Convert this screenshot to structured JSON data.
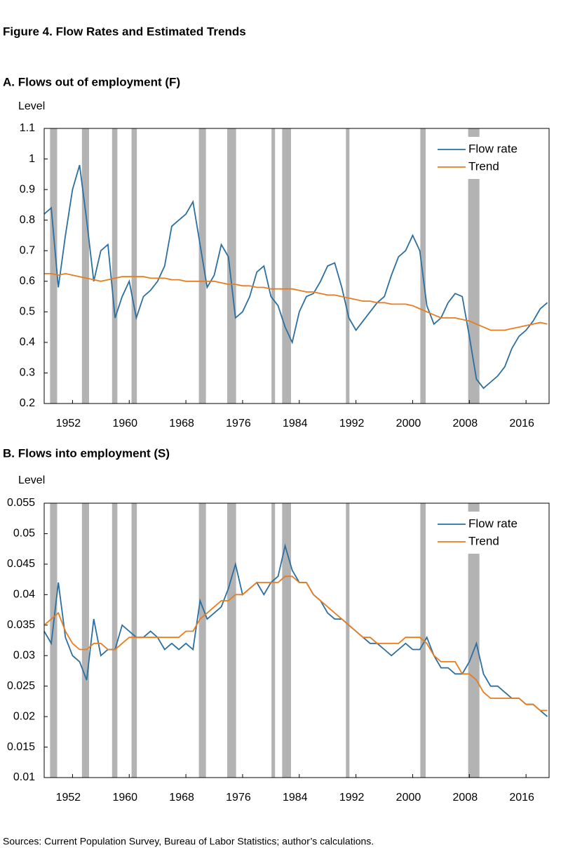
{
  "title": "Figure 4. Flow Rates and Estimated Trends",
  "source": "Sources: Current Population Survey, Bureau of Labor Statistics; author’s calculations.",
  "chart_data": [
    {
      "type": "line",
      "title": "A. Flows out of employment (F)",
      "ylabel": "Level",
      "x": [
        1948,
        1949,
        1950,
        1951,
        1952,
        1953,
        1954,
        1955,
        1956,
        1957,
        1958,
        1959,
        1960,
        1961,
        1962,
        1963,
        1964,
        1965,
        1966,
        1967,
        1968,
        1969,
        1970,
        1971,
        1972,
        1973,
        1974,
        1975,
        1976,
        1977,
        1978,
        1979,
        1980,
        1981,
        1982,
        1983,
        1984,
        1985,
        1986,
        1987,
        1988,
        1989,
        1990,
        1991,
        1992,
        1993,
        1994,
        1995,
        1996,
        1997,
        1998,
        1999,
        2000,
        2001,
        2002,
        2003,
        2004,
        2005,
        2006,
        2007,
        2008,
        2009,
        2010,
        2011,
        2012,
        2013,
        2014,
        2015,
        2016,
        2017,
        2018,
        2019
      ],
      "series": [
        {
          "name": "Flow rate",
          "color": "#2b6fa0",
          "values": [
            0.82,
            0.84,
            0.58,
            0.75,
            0.9,
            0.98,
            0.8,
            0.6,
            0.7,
            0.72,
            0.48,
            0.55,
            0.6,
            0.48,
            0.55,
            0.57,
            0.6,
            0.65,
            0.78,
            0.8,
            0.82,
            0.86,
            0.72,
            0.58,
            0.62,
            0.72,
            0.68,
            0.48,
            0.5,
            0.55,
            0.63,
            0.65,
            0.55,
            0.52,
            0.45,
            0.4,
            0.5,
            0.55,
            0.56,
            0.6,
            0.65,
            0.66,
            0.58,
            0.48,
            0.44,
            0.47,
            0.5,
            0.53,
            0.55,
            0.62,
            0.68,
            0.7,
            0.75,
            0.7,
            0.52,
            0.46,
            0.48,
            0.53,
            0.56,
            0.55,
            0.42,
            0.28,
            0.25,
            0.27,
            0.29,
            0.32,
            0.38,
            0.42,
            0.44,
            0.47,
            0.51,
            0.53
          ]
        },
        {
          "name": "Trend",
          "color": "#e87d1e",
          "values": [
            0.625,
            0.625,
            0.62,
            0.625,
            0.62,
            0.615,
            0.61,
            0.605,
            0.6,
            0.605,
            0.61,
            0.615,
            0.615,
            0.615,
            0.615,
            0.61,
            0.61,
            0.61,
            0.605,
            0.605,
            0.6,
            0.6,
            0.6,
            0.6,
            0.6,
            0.595,
            0.59,
            0.59,
            0.585,
            0.585,
            0.58,
            0.58,
            0.575,
            0.575,
            0.575,
            0.575,
            0.57,
            0.565,
            0.565,
            0.56,
            0.555,
            0.555,
            0.55,
            0.545,
            0.54,
            0.535,
            0.535,
            0.53,
            0.53,
            0.525,
            0.525,
            0.525,
            0.52,
            0.51,
            0.5,
            0.49,
            0.48,
            0.48,
            0.48,
            0.475,
            0.47,
            0.46,
            0.45,
            0.44,
            0.44,
            0.44,
            0.445,
            0.45,
            0.455,
            0.46,
            0.465,
            0.46
          ]
        }
      ],
      "recessions": [
        [
          1948.83,
          1949.83
        ],
        [
          1953.33,
          1954.33
        ],
        [
          1957.58,
          1958.33
        ],
        [
          1960.33,
          1961.08
        ],
        [
          1969.83,
          1970.83
        ],
        [
          1973.83,
          1975.08
        ],
        [
          1980.08,
          1980.58
        ],
        [
          1981.58,
          1982.83
        ],
        [
          1990.58,
          1991.08
        ],
        [
          2001.08,
          2001.83
        ],
        [
          2007.83,
          2009.42
        ]
      ],
      "xlim": [
        1948,
        2019.25
      ],
      "xticks": [
        1952,
        1960,
        1968,
        1976,
        1984,
        1992,
        2000,
        2008,
        2016
      ],
      "ylim": [
        0.2,
        1.1
      ],
      "yticks": [
        0.2,
        0.3,
        0.4,
        0.5,
        0.6,
        0.7,
        0.8,
        0.9,
        1,
        1.1
      ],
      "legend": "upper right"
    },
    {
      "type": "line",
      "title": "B. Flows into employment (S)",
      "ylabel": "Level",
      "x": [
        1948,
        1949,
        1950,
        1951,
        1952,
        1953,
        1954,
        1955,
        1956,
        1957,
        1958,
        1959,
        1960,
        1961,
        1962,
        1963,
        1964,
        1965,
        1966,
        1967,
        1968,
        1969,
        1970,
        1971,
        1972,
        1973,
        1974,
        1975,
        1976,
        1977,
        1978,
        1979,
        1980,
        1981,
        1982,
        1983,
        1984,
        1985,
        1986,
        1987,
        1988,
        1989,
        1990,
        1991,
        1992,
        1993,
        1994,
        1995,
        1996,
        1997,
        1998,
        1999,
        2000,
        2001,
        2002,
        2003,
        2004,
        2005,
        2006,
        2007,
        2008,
        2009,
        2010,
        2011,
        2012,
        2013,
        2014,
        2015,
        2016,
        2017,
        2018,
        2019
      ],
      "series": [
        {
          "name": "Flow rate",
          "color": "#2b6fa0",
          "values": [
            0.034,
            0.032,
            0.042,
            0.033,
            0.03,
            0.029,
            0.026,
            0.036,
            0.03,
            0.031,
            0.031,
            0.035,
            0.034,
            0.033,
            0.033,
            0.034,
            0.033,
            0.031,
            0.032,
            0.031,
            0.032,
            0.031,
            0.039,
            0.036,
            0.037,
            0.038,
            0.041,
            0.045,
            0.04,
            0.041,
            0.042,
            0.04,
            0.042,
            0.043,
            0.048,
            0.044,
            0.042,
            0.042,
            0.04,
            0.039,
            0.037,
            0.036,
            0.036,
            0.035,
            0.034,
            0.033,
            0.032,
            0.032,
            0.031,
            0.03,
            0.031,
            0.032,
            0.031,
            0.031,
            0.033,
            0.03,
            0.028,
            0.028,
            0.027,
            0.027,
            0.029,
            0.032,
            0.027,
            0.025,
            0.025,
            0.024,
            0.023,
            0.023,
            0.022,
            0.022,
            0.021,
            0.02
          ]
        },
        {
          "name": "Trend",
          "color": "#e87d1e",
          "values": [
            0.035,
            0.036,
            0.037,
            0.034,
            0.032,
            0.031,
            0.031,
            0.032,
            0.032,
            0.031,
            0.031,
            0.032,
            0.033,
            0.033,
            0.033,
            0.033,
            0.033,
            0.033,
            0.033,
            0.033,
            0.034,
            0.034,
            0.036,
            0.037,
            0.038,
            0.039,
            0.039,
            0.04,
            0.04,
            0.041,
            0.042,
            0.042,
            0.042,
            0.042,
            0.043,
            0.043,
            0.042,
            0.042,
            0.04,
            0.039,
            0.038,
            0.037,
            0.036,
            0.035,
            0.034,
            0.033,
            0.033,
            0.032,
            0.032,
            0.032,
            0.032,
            0.033,
            0.033,
            0.033,
            0.032,
            0.03,
            0.029,
            0.029,
            0.029,
            0.027,
            0.027,
            0.026,
            0.024,
            0.023,
            0.023,
            0.023,
            0.023,
            0.023,
            0.022,
            0.022,
            0.021,
            0.021
          ]
        }
      ],
      "recessions": [
        [
          1948.83,
          1949.83
        ],
        [
          1953.33,
          1954.33
        ],
        [
          1957.58,
          1958.33
        ],
        [
          1960.33,
          1961.08
        ],
        [
          1969.83,
          1970.83
        ],
        [
          1973.83,
          1975.08
        ],
        [
          1980.08,
          1980.58
        ],
        [
          1981.58,
          1982.83
        ],
        [
          1990.58,
          1991.08
        ],
        [
          2001.08,
          2001.83
        ],
        [
          2007.83,
          2009.42
        ]
      ],
      "xlim": [
        1948,
        2019.25
      ],
      "xticks": [
        1952,
        1960,
        1968,
        1976,
        1984,
        1992,
        2000,
        2008,
        2016
      ],
      "ylim": [
        0.01,
        0.055
      ],
      "yticks": [
        0.01,
        0.015,
        0.02,
        0.025,
        0.03,
        0.035,
        0.04,
        0.045,
        0.05,
        0.055
      ],
      "legend": "upper right"
    }
  ]
}
